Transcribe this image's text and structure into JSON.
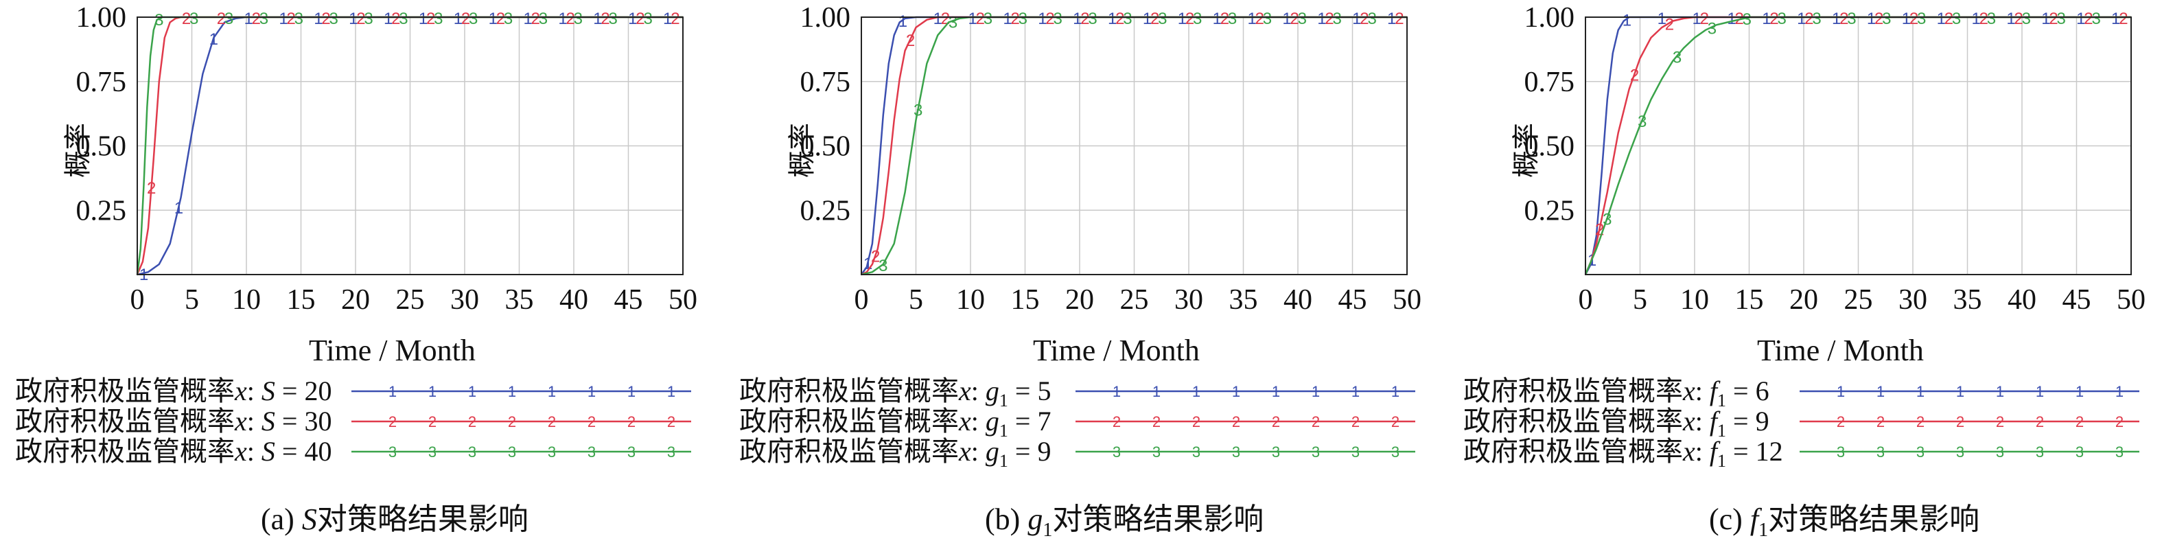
{
  "chart_data": [
    {
      "type": "line",
      "ylabel": "概率",
      "xlabel": "Time / Month",
      "caption_prefix": "(a) ",
      "caption_var": "S",
      "caption_suffix": "对策略结果影响",
      "xlim": [
        0,
        50
      ],
      "ylim": [
        0,
        1
      ],
      "xticks": [
        "0",
        "5",
        "10",
        "15",
        "20",
        "25",
        "30",
        "35",
        "40",
        "45",
        "50"
      ],
      "yticks": [
        "1.00",
        "0.75",
        "0.50",
        "0.25"
      ],
      "grid": true,
      "legend_position": "bottom",
      "series": [
        {
          "name": "政府积极监管概率x: S = 20",
          "label_prefix": "政府积极监管概率",
          "label_var": "x",
          "label_param": "S",
          "label_value": " = 20",
          "marker": "1",
          "color": "#3b4fb0",
          "x": [
            0,
            1,
            2,
            3,
            4,
            5,
            6,
            7,
            8,
            9,
            10,
            12,
            15,
            20,
            25,
            30,
            35,
            40,
            45,
            50
          ],
          "y": [
            0,
            0.01,
            0.04,
            0.12,
            0.3,
            0.55,
            0.78,
            0.92,
            0.98,
            0.995,
            1,
            1,
            1,
            1,
            1,
            1,
            1,
            1,
            1,
            1
          ]
        },
        {
          "name": "政府积极监管概率x: S = 30",
          "label_prefix": "政府积极监管概率",
          "label_var": "x",
          "label_param": "S",
          "label_value": " = 30",
          "marker": "2",
          "color": "#e03a4b",
          "x": [
            0,
            0.5,
            1,
            1.5,
            2,
            2.5,
            3,
            3.5,
            4,
            5,
            6,
            8,
            10,
            15,
            20,
            25,
            30,
            35,
            40,
            45,
            50
          ],
          "y": [
            0,
            0.05,
            0.18,
            0.45,
            0.75,
            0.92,
            0.98,
            0.995,
            1,
            1,
            1,
            1,
            1,
            1,
            1,
            1,
            1,
            1,
            1,
            1,
            1
          ]
        },
        {
          "name": "政府积极监管概率x: S = 40",
          "label_prefix": "政府积极监管概率",
          "label_var": "x",
          "label_param": "S",
          "label_value": " = 40",
          "marker": "3",
          "color": "#3aa34a",
          "x": [
            0,
            0.3,
            0.6,
            0.9,
            1.2,
            1.5,
            1.8,
            2.2,
            3,
            4,
            6,
            8,
            10,
            15,
            20,
            25,
            30,
            35,
            40,
            45,
            50
          ],
          "y": [
            0,
            0.1,
            0.35,
            0.65,
            0.85,
            0.95,
            0.99,
            1,
            1,
            1,
            1,
            1,
            1,
            1,
            1,
            1,
            1,
            1,
            1,
            1,
            1
          ]
        }
      ]
    },
    {
      "type": "line",
      "ylabel": "概率",
      "xlabel": "Time / Month",
      "caption_prefix": "(b) ",
      "caption_var": "g",
      "caption_sub": "1",
      "caption_suffix": "对策略结果影响",
      "xlim": [
        0,
        50
      ],
      "ylim": [
        0,
        1
      ],
      "xticks": [
        "0",
        "5",
        "10",
        "15",
        "20",
        "25",
        "30",
        "35",
        "40",
        "45",
        "50"
      ],
      "yticks": [
        "1.00",
        "0.75",
        "0.50",
        "0.25"
      ],
      "grid": true,
      "legend_position": "bottom",
      "series": [
        {
          "name": "政府积极监管概率x: g1 = 5",
          "label_prefix": "政府积极监管概率",
          "label_var": "x",
          "label_param": "g",
          "label_sub": "1",
          "label_value": " = 5",
          "marker": "1",
          "color": "#3b4fb0",
          "x": [
            0,
            0.5,
            1,
            1.5,
            2,
            2.5,
            3,
            3.5,
            4,
            5,
            6,
            8,
            10,
            15,
            20,
            25,
            30,
            35,
            40,
            45,
            50
          ],
          "y": [
            0,
            0.03,
            0.12,
            0.35,
            0.62,
            0.82,
            0.93,
            0.98,
            0.995,
            1,
            1,
            1,
            1,
            1,
            1,
            1,
            1,
            1,
            1,
            1,
            1
          ]
        },
        {
          "name": "政府积极监管概率x: g1 = 7",
          "label_prefix": "政府积极监管概率",
          "label_var": "x",
          "label_param": "g",
          "label_sub": "1",
          "label_value": " = 7",
          "marker": "2",
          "color": "#e03a4b",
          "x": [
            0,
            0.5,
            1,
            1.5,
            2,
            2.5,
            3,
            3.5,
            4,
            5,
            6,
            7,
            8,
            10,
            15,
            20,
            25,
            30,
            35,
            40,
            45,
            50
          ],
          "y": [
            0,
            0.01,
            0.04,
            0.1,
            0.22,
            0.4,
            0.6,
            0.76,
            0.87,
            0.96,
            0.99,
            1,
            1,
            1,
            1,
            1,
            1,
            1,
            1,
            1,
            1,
            1
          ]
        },
        {
          "name": "政府积极监管概率x: g1 = 9",
          "label_prefix": "政府积极监管概率",
          "label_var": "x",
          "label_param": "g",
          "label_sub": "1",
          "label_value": " = 9",
          "marker": "3",
          "color": "#3aa34a",
          "x": [
            0,
            1,
            2,
            3,
            4,
            5,
            6,
            7,
            8,
            9,
            10,
            12,
            15,
            20,
            25,
            30,
            35,
            40,
            45,
            50
          ],
          "y": [
            0,
            0.01,
            0.04,
            0.12,
            0.32,
            0.6,
            0.82,
            0.93,
            0.98,
            0.995,
            1,
            1,
            1,
            1,
            1,
            1,
            1,
            1,
            1,
            1
          ]
        }
      ]
    },
    {
      "type": "line",
      "ylabel": "概率",
      "xlabel": "Time / Month",
      "caption_prefix": "(c) ",
      "caption_var": "f",
      "caption_sub": "1",
      "caption_suffix": "对策略结果影响",
      "xlim": [
        0,
        50
      ],
      "ylim": [
        0,
        1
      ],
      "xticks": [
        "0",
        "5",
        "10",
        "15",
        "20",
        "25",
        "30",
        "35",
        "40",
        "45",
        "50"
      ],
      "yticks": [
        "1.00",
        "0.75",
        "0.50",
        "0.25"
      ],
      "grid": true,
      "legend_position": "bottom",
      "series": [
        {
          "name": "政府积极监管概率x: f1 = 6",
          "label_prefix": "政府积极监管概率",
          "label_var": "x",
          "label_param": "f",
          "label_sub": "1",
          "label_value": " = 6",
          "marker": "1",
          "color": "#3b4fb0",
          "x": [
            0,
            0.5,
            1,
            1.5,
            2,
            2.5,
            3,
            3.5,
            4,
            5,
            6,
            8,
            10,
            15,
            20,
            25,
            30,
            35,
            40,
            45,
            50
          ],
          "y": [
            0,
            0.04,
            0.15,
            0.4,
            0.68,
            0.86,
            0.95,
            0.985,
            1,
            1,
            1,
            1,
            1,
            1,
            1,
            1,
            1,
            1,
            1,
            1,
            1
          ]
        },
        {
          "name": "政府积极监管概率x: f1 = 9",
          "label_prefix": "政府积极监管概率",
          "label_var": "x",
          "label_param": "f",
          "label_sub": "1",
          "label_value": " = 9",
          "marker": "2",
          "color": "#e03a4b",
          "x": [
            0,
            0.5,
            1,
            2,
            3,
            4,
            5,
            6,
            7,
            8,
            9,
            10,
            12,
            15,
            20,
            25,
            30,
            35,
            40,
            45,
            50
          ],
          "y": [
            0,
            0.05,
            0.12,
            0.32,
            0.55,
            0.72,
            0.84,
            0.92,
            0.96,
            0.985,
            0.995,
            1,
            1,
            1,
            1,
            1,
            1,
            1,
            1,
            1,
            1
          ]
        },
        {
          "name": "政府积极监管概率x: f1 = 12",
          "label_prefix": "政府积极监管概率",
          "label_var": "x",
          "label_param": "f",
          "label_sub": "1",
          "label_value": " = 12",
          "marker": "3",
          "color": "#3aa34a",
          "x": [
            0,
            1,
            2,
            3,
            4,
            5,
            6,
            7,
            8,
            9,
            10,
            11,
            12,
            13,
            14,
            15,
            17,
            20,
            25,
            30,
            35,
            40,
            45,
            50
          ],
          "y": [
            0,
            0.1,
            0.22,
            0.35,
            0.47,
            0.58,
            0.68,
            0.76,
            0.83,
            0.88,
            0.92,
            0.95,
            0.97,
            0.98,
            0.99,
            1,
            1,
            1,
            1,
            1,
            1,
            1,
            1,
            1
          ]
        }
      ]
    }
  ]
}
